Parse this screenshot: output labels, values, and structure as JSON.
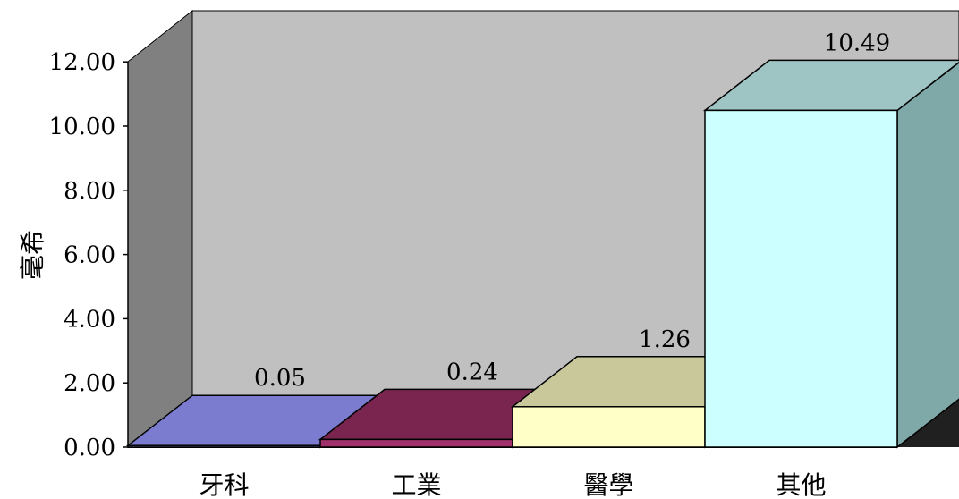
{
  "chart_data": {
    "type": "bar",
    "style": "3d",
    "categories": [
      "牙科",
      "工業",
      "醫學",
      "其他"
    ],
    "values": [
      0.05,
      0.24,
      1.26,
      10.49
    ],
    "value_labels": [
      "0.05",
      "0.24",
      "1.26",
      "10.49"
    ],
    "ylabel": "毫希",
    "ylim": [
      0,
      12
    ],
    "yticks": [
      "0.00",
      "2.00",
      "4.00",
      "6.00",
      "8.00",
      "10.00",
      "12.00"
    ],
    "grid": false,
    "legend": "none",
    "colors": {
      "bars": [
        {
          "front": "#7b7fd0",
          "top": "#7b7bd0",
          "side": "#5a5ca0"
        },
        {
          "front": "#a0306a",
          "top": "#7a2550",
          "side": "#601a40"
        },
        {
          "front": "#ffffc8",
          "top": "#c8c89a",
          "side": "#b0b088"
        },
        {
          "front": "#ccffff",
          "top": "#9fc4c4",
          "side": "#7fa8a8"
        }
      ],
      "back_wall": "#c0c0c0",
      "side_wall": "#808080",
      "floor": "#202020"
    }
  }
}
